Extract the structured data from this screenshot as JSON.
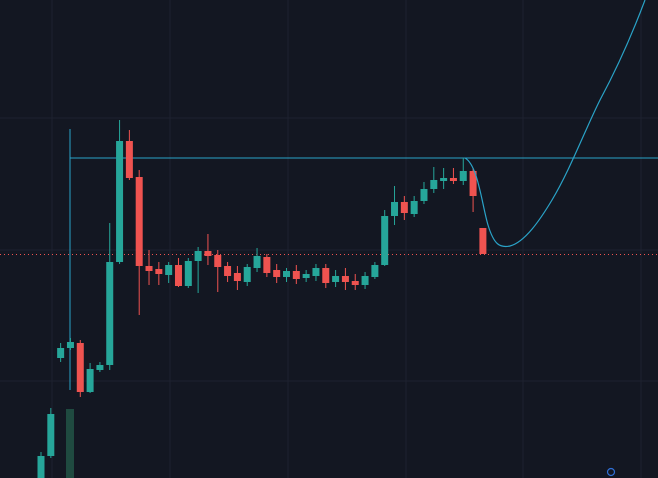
{
  "chart_data": {
    "type": "candlestick",
    "ylim": [
      0,
      478
    ],
    "up_color": "#26a69a",
    "down_color": "#ef5350",
    "open": [
      0,
      22,
      120,
      130,
      135,
      86,
      108,
      113,
      216,
      337,
      301,
      212,
      209,
      203,
      213,
      192,
      217,
      227,
      223,
      212,
      205,
      196,
      210,
      221,
      208,
      201,
      207,
      200,
      202,
      210,
      196,
      202,
      197,
      193,
      201,
      213,
      262,
      276,
      264,
      277,
      289,
      297,
      300,
      297,
      307,
      250
    ],
    "high": [
      26,
      70,
      135,
      140,
      138,
      115,
      116,
      255,
      358,
      348,
      308,
      228,
      216,
      216,
      220,
      220,
      231,
      244,
      228,
      216,
      212,
      214,
      230,
      224,
      214,
      210,
      213,
      208,
      214,
      214,
      208,
      210,
      204,
      206,
      216,
      268,
      292,
      282,
      282,
      296,
      311,
      310,
      310,
      320,
      310,
      250
    ],
    "low": [
      0,
      20,
      116,
      128,
      81,
      85,
      106,
      108,
      214,
      298,
      163,
      193,
      193,
      195,
      191,
      190,
      185,
      213,
      186,
      196,
      188,
      192,
      206,
      201,
      195,
      196,
      194,
      196,
      197,
      190,
      191,
      188,
      188,
      189,
      199,
      212,
      253,
      258,
      261,
      274,
      285,
      289,
      294,
      293,
      266,
      224
    ],
    "close": [
      22,
      64,
      130,
      136,
      86,
      109,
      113,
      216,
      337,
      300,
      212,
      207,
      204,
      213,
      192,
      217,
      227,
      222,
      211,
      202,
      197,
      211,
      222,
      205,
      201,
      207,
      199,
      204,
      210,
      195,
      202,
      196,
      193,
      202,
      213,
      262,
      276,
      265,
      277,
      289,
      298,
      300,
      297,
      307,
      282,
      224
    ]
  }
}
